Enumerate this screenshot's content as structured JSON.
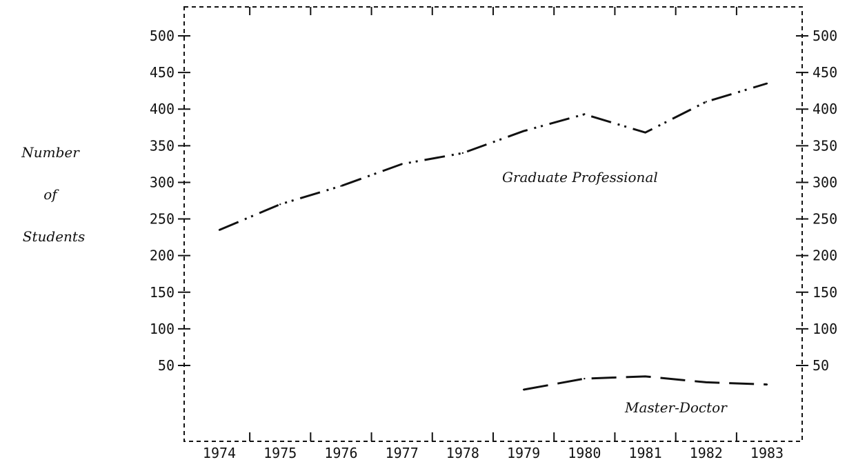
{
  "chart_data": {
    "type": "line",
    "title": "",
    "xlabel": "",
    "ylabel_lines": [
      "Number",
      "of",
      "Students"
    ],
    "x": [
      "1974",
      "1975",
      "1976",
      "1977",
      "1978",
      "1979",
      "1980",
      "1981",
      "1982",
      "1983"
    ],
    "y_ticks": [
      50,
      100,
      150,
      200,
      250,
      300,
      350,
      400,
      450,
      500
    ],
    "ylim": [
      10,
      540
    ],
    "y_axis_right": true,
    "grid": false,
    "series": [
      {
        "name": "Graduate Professional",
        "x": [
          1974,
          1975,
          1976,
          1977,
          1978,
          1979,
          1980,
          1981,
          1982,
          1983
        ],
        "values": [
          235,
          270,
          295,
          325,
          340,
          370,
          393,
          368,
          410,
          435
        ],
        "color": "#111111",
        "style": "dash-dot-dot"
      },
      {
        "name": "Master-Doctor",
        "x": [
          1979,
          1980,
          1981,
          1982,
          1983
        ],
        "values": [
          17,
          32,
          35,
          27,
          24
        ],
        "color": "#111111",
        "style": "dashed"
      }
    ]
  }
}
